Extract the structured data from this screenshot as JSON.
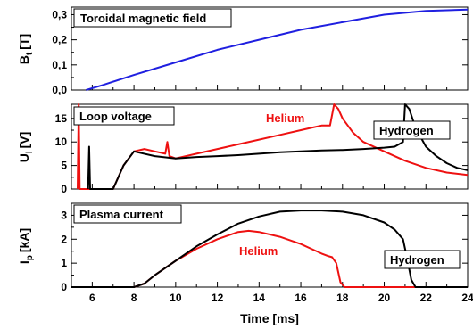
{
  "chart_data": [
    {
      "type": "line",
      "title": "Toroidal magnetic field",
      "ylabel": "B",
      "ylabel_sub": "t",
      "ylabel_unit": "[T]",
      "xlim": [
        5,
        24
      ],
      "ylim": [
        0,
        0.33
      ],
      "yticks": [
        0,
        0.1,
        0.2,
        0.3
      ],
      "ytick_labels": [
        "0,0",
        "0,1",
        "0,2",
        "0,3"
      ],
      "series": [
        {
          "color": "#1f1fe0",
          "x": [
            5.7,
            6.5,
            8,
            10,
            12,
            14,
            16,
            18,
            20,
            22,
            24
          ],
          "y": [
            0,
            0.02,
            0.06,
            0.11,
            0.16,
            0.2,
            0.24,
            0.27,
            0.3,
            0.315,
            0.32
          ]
        }
      ]
    },
    {
      "type": "line",
      "title": "Loop voltage",
      "ylabel": "U",
      "ylabel_sub": "l",
      "ylabel_unit": "[V]",
      "xlim": [
        5,
        24
      ],
      "ylim": [
        0,
        18
      ],
      "yticks": [
        0,
        5,
        10,
        15
      ],
      "ytick_labels": [
        "0",
        "5",
        "10",
        "15"
      ],
      "series": [
        {
          "name": "Helium",
          "color": "#ee1111",
          "x": [
            5.3,
            5.35,
            5.4,
            5.5,
            7.0,
            7.5,
            8.0,
            8.5,
            9.0,
            9.5,
            9.6,
            9.7,
            10,
            11,
            12,
            13,
            14,
            15,
            16,
            16.5,
            17,
            17.4,
            17.6,
            17.8,
            18.0,
            18.5,
            19,
            20,
            21,
            22,
            23,
            24
          ],
          "y": [
            0,
            18,
            0,
            0,
            0,
            5,
            8,
            8.5,
            8,
            7.5,
            10,
            7,
            6.5,
            7.5,
            8.5,
            9.5,
            10.5,
            11.5,
            12.5,
            13,
            13.5,
            13.5,
            18,
            17,
            15,
            12,
            10,
            8,
            6,
            4.5,
            3.5,
            3
          ]
        },
        {
          "name": "Hydrogen",
          "color": "#000000",
          "x": [
            5.8,
            5.85,
            5.9,
            6,
            7.0,
            7.5,
            8.0,
            9,
            10,
            11,
            12,
            13,
            14,
            15,
            16,
            17,
            18,
            19,
            20,
            20.5,
            20.9,
            21.0,
            21.2,
            21.5,
            22,
            22.5,
            23,
            23.5,
            24
          ],
          "y": [
            0,
            9,
            0,
            0,
            0,
            5,
            8,
            7,
            6.5,
            6.8,
            7,
            7.2,
            7.5,
            7.8,
            8,
            8.2,
            8.3,
            8.5,
            8.8,
            9,
            10,
            18,
            17,
            13,
            9,
            7,
            5.5,
            4.5,
            4
          ]
        }
      ]
    },
    {
      "type": "line",
      "title": "Plasma current",
      "ylabel": "I",
      "ylabel_sub": "p",
      "ylabel_unit": "[kA]",
      "xlabel": "Time [ms]",
      "xlim": [
        5,
        24
      ],
      "xticks": [
        6,
        8,
        10,
        12,
        14,
        16,
        18,
        20,
        22,
        24
      ],
      "xtick_labels": [
        "6",
        "8",
        "10",
        "12",
        "14",
        "16",
        "18",
        "20",
        "22",
        "24"
      ],
      "ylim": [
        0,
        3.5
      ],
      "yticks": [
        0,
        1,
        2,
        3
      ],
      "ytick_labels": [
        "0",
        "1",
        "2",
        "3"
      ],
      "series": [
        {
          "name": "Helium",
          "color": "#ee1111",
          "x": [
            5,
            8.0,
            8.5,
            9,
            10,
            11,
            12,
            13,
            13.5,
            14,
            15,
            16,
            16.5,
            17,
            17.3,
            17.5,
            17.7,
            17.9,
            18.1,
            24
          ],
          "y": [
            0,
            0,
            0.15,
            0.5,
            1.1,
            1.6,
            2.0,
            2.3,
            2.35,
            2.3,
            2.1,
            1.8,
            1.6,
            1.4,
            1.3,
            1.25,
            1.0,
            0.2,
            0,
            0
          ]
        },
        {
          "name": "Hydrogen",
          "color": "#000000",
          "x": [
            5,
            8.0,
            8.5,
            9,
            10,
            11,
            12,
            13,
            14,
            15,
            16,
            17,
            18,
            19,
            20,
            20.5,
            20.9,
            21.1,
            21.3,
            21.5,
            24
          ],
          "y": [
            0,
            0,
            0.15,
            0.5,
            1.1,
            1.7,
            2.2,
            2.65,
            2.95,
            3.15,
            3.2,
            3.2,
            3.15,
            3.0,
            2.7,
            2.4,
            2.0,
            1.2,
            0.3,
            0,
            0
          ]
        }
      ]
    }
  ],
  "annotations": {
    "mid_helium": "Helium",
    "mid_hydrogen": "Hydrogen",
    "bot_helium": "Helium",
    "bot_hydrogen": "Hydrogen"
  },
  "colors": {
    "helium": "#ee1111",
    "hydrogen": "#000000",
    "field": "#1f1fe0"
  }
}
